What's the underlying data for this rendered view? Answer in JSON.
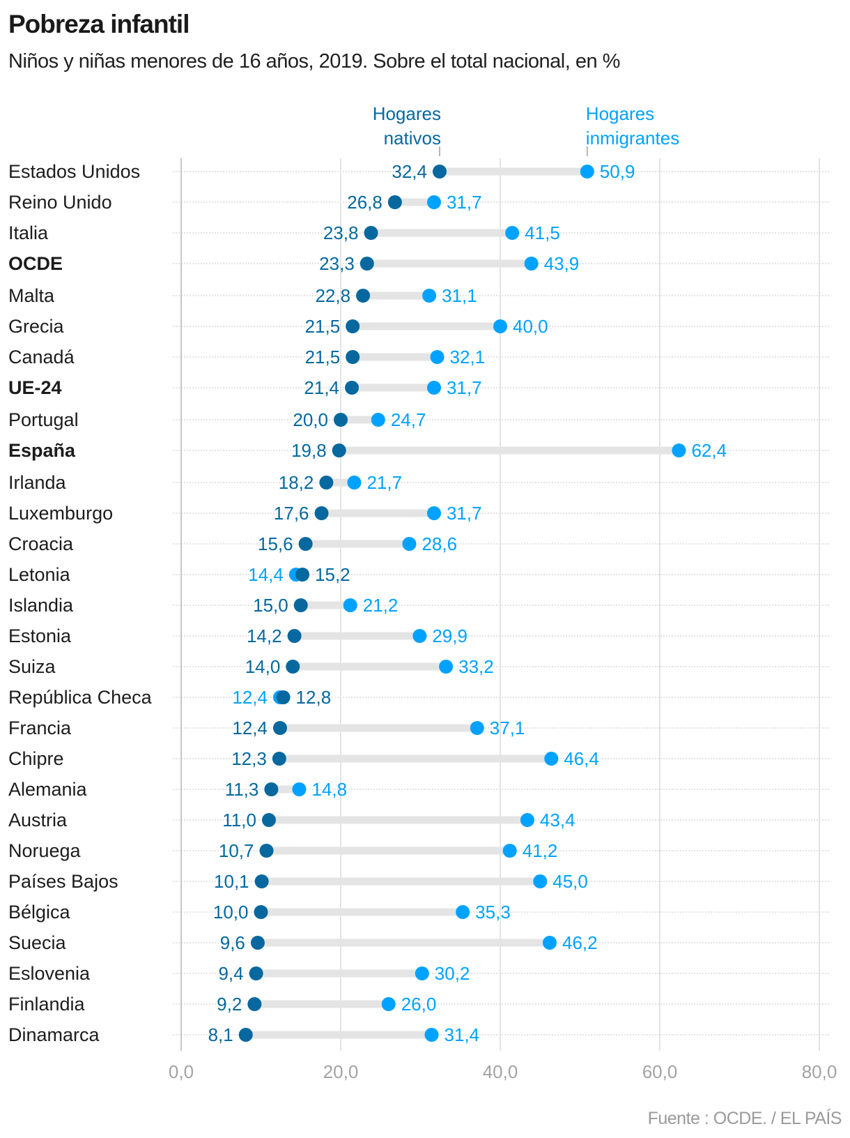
{
  "header": {
    "title": "Pobreza infantil",
    "subtitle": "Niños y niñas menores de 16 años, 2019. Sobre el total nacional, en %"
  },
  "footer": {
    "source": "Fuente : OCDE. / EL PAÍS"
  },
  "chart_data": {
    "type": "dumbbell",
    "title": "Pobreza infantil",
    "subtitle": "Niños y niñas menores de 16 años, 2019. Sobre el total nacional, en %",
    "xlabel": "",
    "ylabel": "",
    "xlim": [
      0,
      80
    ],
    "xticks": [
      0,
      20,
      40,
      60,
      80
    ],
    "xtick_labels": [
      "0,0",
      "20,0",
      "40,0",
      "60,0",
      "80,0"
    ],
    "grid": true,
    "legend_placement": "top (annotations above first row)",
    "colors": {
      "nativos": "#06689e",
      "inmigrantes": "#00a2ff",
      "connector": "#e4e4e4",
      "grid": "#e3e3e3",
      "axis": "#c8c8c8",
      "tick_label": "#a3a3a3",
      "category_label": "#1c1c1c"
    },
    "series": [
      {
        "key": "nativos",
        "name": "Hogares nativos",
        "legend_lines": [
          "Hogares",
          "nativos"
        ]
      },
      {
        "key": "inmigrantes",
        "name": "Hogares inmigrantes",
        "legend_lines": [
          "Hogares",
          "inmigrantes"
        ]
      }
    ],
    "rows": [
      {
        "category": "Estados Unidos",
        "bold": false,
        "nativos": 32.4,
        "inmigrantes": 50.9,
        "nativos_label": "32,4",
        "inmigrantes_label": "50,9"
      },
      {
        "category": "Reino Unido",
        "bold": false,
        "nativos": 26.8,
        "inmigrantes": 31.7,
        "nativos_label": "26,8",
        "inmigrantes_label": "31,7"
      },
      {
        "category": "Italia",
        "bold": false,
        "nativos": 23.8,
        "inmigrantes": 41.5,
        "nativos_label": "23,8",
        "inmigrantes_label": "41,5"
      },
      {
        "category": "OCDE",
        "bold": true,
        "nativos": 23.3,
        "inmigrantes": 43.9,
        "nativos_label": "23,3",
        "inmigrantes_label": "43,9"
      },
      {
        "category": "Malta",
        "bold": false,
        "nativos": 22.8,
        "inmigrantes": 31.1,
        "nativos_label": "22,8",
        "inmigrantes_label": "31,1"
      },
      {
        "category": "Grecia",
        "bold": false,
        "nativos": 21.5,
        "inmigrantes": 40.0,
        "nativos_label": "21,5",
        "inmigrantes_label": "40,0"
      },
      {
        "category": "Canadá",
        "bold": false,
        "nativos": 21.5,
        "inmigrantes": 32.1,
        "nativos_label": "21,5",
        "inmigrantes_label": "32,1"
      },
      {
        "category": "UE-24",
        "bold": true,
        "nativos": 21.4,
        "inmigrantes": 31.7,
        "nativos_label": "21,4",
        "inmigrantes_label": "31,7"
      },
      {
        "category": "Portugal",
        "bold": false,
        "nativos": 20.0,
        "inmigrantes": 24.7,
        "nativos_label": "20,0",
        "inmigrantes_label": "24,7"
      },
      {
        "category": "España",
        "bold": true,
        "nativos": 19.8,
        "inmigrantes": 62.4,
        "nativos_label": "19,8",
        "inmigrantes_label": "62,4"
      },
      {
        "category": "Irlanda",
        "bold": false,
        "nativos": 18.2,
        "inmigrantes": 21.7,
        "nativos_label": "18,2",
        "inmigrantes_label": "21,7"
      },
      {
        "category": "Luxemburgo",
        "bold": false,
        "nativos": 17.6,
        "inmigrantes": 31.7,
        "nativos_label": "17,6",
        "inmigrantes_label": "31,7"
      },
      {
        "category": "Croacia",
        "bold": false,
        "nativos": 15.6,
        "inmigrantes": 28.6,
        "nativos_label": "15,6",
        "inmigrantes_label": "28,6"
      },
      {
        "category": "Letonia",
        "bold": false,
        "nativos": 15.2,
        "inmigrantes": 14.4,
        "nativos_label": "15,2",
        "inmigrantes_label": "14,4"
      },
      {
        "category": "Islandia",
        "bold": false,
        "nativos": 15.0,
        "inmigrantes": 21.2,
        "nativos_label": "15,0",
        "inmigrantes_label": "21,2"
      },
      {
        "category": "Estonia",
        "bold": false,
        "nativos": 14.2,
        "inmigrantes": 29.9,
        "nativos_label": "14,2",
        "inmigrantes_label": "29,9"
      },
      {
        "category": "Suiza",
        "bold": false,
        "nativos": 14.0,
        "inmigrantes": 33.2,
        "nativos_label": "14,0",
        "inmigrantes_label": "33,2"
      },
      {
        "category": "República Checa",
        "bold": false,
        "nativos": 12.8,
        "inmigrantes": 12.4,
        "nativos_label": "12,8",
        "inmigrantes_label": "12,4"
      },
      {
        "category": "Francia",
        "bold": false,
        "nativos": 12.4,
        "inmigrantes": 37.1,
        "nativos_label": "12,4",
        "inmigrantes_label": "37,1"
      },
      {
        "category": "Chipre",
        "bold": false,
        "nativos": 12.3,
        "inmigrantes": 46.4,
        "nativos_label": "12,3",
        "inmigrantes_label": "46,4"
      },
      {
        "category": "Alemania",
        "bold": false,
        "nativos": 11.3,
        "inmigrantes": 14.8,
        "nativos_label": "11,3",
        "inmigrantes_label": "14,8"
      },
      {
        "category": "Austria",
        "bold": false,
        "nativos": 11.0,
        "inmigrantes": 43.4,
        "nativos_label": "11,0",
        "inmigrantes_label": "43,4"
      },
      {
        "category": "Noruega",
        "bold": false,
        "nativos": 10.7,
        "inmigrantes": 41.2,
        "nativos_label": "10,7",
        "inmigrantes_label": "41,2"
      },
      {
        "category": "Países Bajos",
        "bold": false,
        "nativos": 10.1,
        "inmigrantes": 45.0,
        "nativos_label": "10,1",
        "inmigrantes_label": "45,0"
      },
      {
        "category": "Bélgica",
        "bold": false,
        "nativos": 10.0,
        "inmigrantes": 35.3,
        "nativos_label": "10,0",
        "inmigrantes_label": "35,3"
      },
      {
        "category": "Suecia",
        "bold": false,
        "nativos": 9.6,
        "inmigrantes": 46.2,
        "nativos_label": "9,6",
        "inmigrantes_label": "46,2"
      },
      {
        "category": "Eslovenia",
        "bold": false,
        "nativos": 9.4,
        "inmigrantes": 30.2,
        "nativos_label": "9,4",
        "inmigrantes_label": "30,2"
      },
      {
        "category": "Finlandia",
        "bold": false,
        "nativos": 9.2,
        "inmigrantes": 26.0,
        "nativos_label": "9,2",
        "inmigrantes_label": "26,0"
      },
      {
        "category": "Dinamarca",
        "bold": false,
        "nativos": 8.1,
        "inmigrantes": 31.4,
        "nativos_label": "8,1",
        "inmigrantes_label": "31,4"
      }
    ]
  }
}
